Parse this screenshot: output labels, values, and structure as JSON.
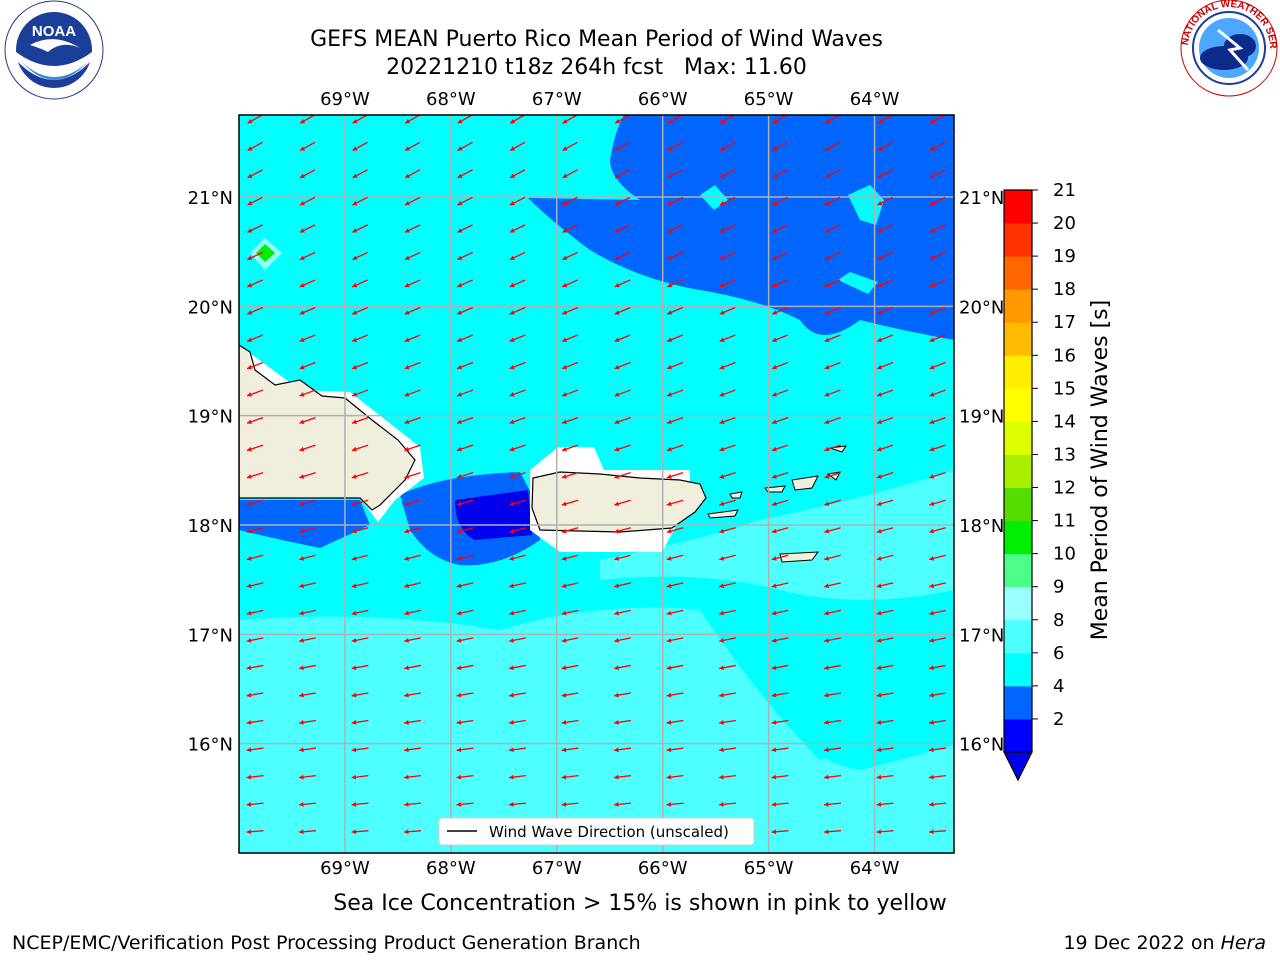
{
  "title": {
    "line1": "GEFS MEAN Puerto Rico Mean Period of Wind Waves",
    "line2": "20221210 t18z 264h fcst   Max: 11.60"
  },
  "logos": {
    "left": {
      "icon": "noaa-logo-icon",
      "text": "NOAA"
    },
    "right": {
      "icon": "national-weather-service-logo-icon",
      "ring_text": "NATIONAL WEATHER SERVICE"
    }
  },
  "map": {
    "lon_labels": [
      "69°W",
      "68°W",
      "67°W",
      "66°W",
      "65°W",
      "64°W"
    ],
    "lat_labels": [
      "21°N",
      "20°N",
      "19°N",
      "18°N",
      "17°N",
      "16°N"
    ],
    "lon_values": [
      -69,
      -68,
      -67,
      -66,
      -65,
      -64
    ],
    "lat_values": [
      21,
      20,
      19,
      18,
      17,
      16
    ],
    "lon_range": [
      -70,
      -63.25
    ],
    "lat_range": [
      15,
      21.75
    ],
    "legend_label": "Wind Wave Direction (unscaled)",
    "arrow_color": "#ff0000"
  },
  "colorbar": {
    "label": "Mean Period of Wind Waves [s]",
    "ticks": [
      "21",
      "20",
      "19",
      "18",
      "17",
      "16",
      "15",
      "14",
      "13",
      "12",
      "11",
      "10",
      "9",
      "8",
      "6",
      "4",
      "2"
    ],
    "colors": [
      "#0000ff",
      "#0066ff",
      "#00ffff",
      "#4dffff",
      "#99ffff",
      "#4dff88",
      "#00ee00",
      "#55dd00",
      "#aaee00",
      "#ddff00",
      "#ffff00",
      "#ffee00",
      "#ffbb00",
      "#ff9900",
      "#ff6600",
      "#ff3300",
      "#ff0000"
    ]
  },
  "note": "Sea Ice Concentration > 15% is shown in pink to yellow",
  "footer": {
    "left": "NCEP/EMC/Verification Post Processing Product Generation Branch",
    "right_prefix": "19 Dec 2022 on ",
    "right_italic": "Hera"
  }
}
